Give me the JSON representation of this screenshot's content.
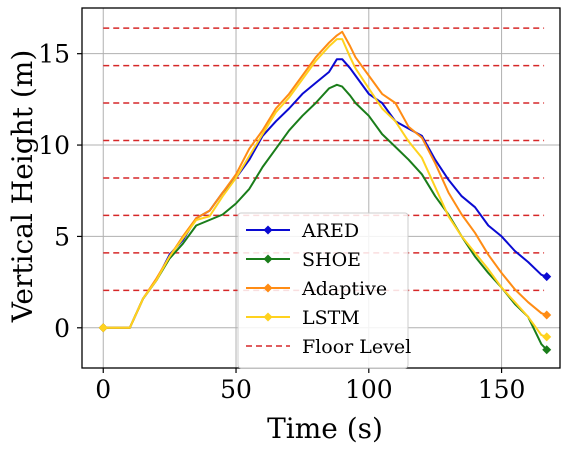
{
  "chart_data": {
    "type": "line",
    "xlabel": "Time (s)",
    "ylabel": "Vertical Height (m)",
    "xlim": [
      -8,
      172
    ],
    "ylim": [
      -2.2,
      17.5
    ],
    "xticks": [
      0,
      50,
      100,
      150
    ],
    "yticks": [
      0,
      5,
      10,
      15
    ],
    "grid": true,
    "legend_position": "lower-center",
    "reference_lines": {
      "name": "Floor Level",
      "color": "#d62728",
      "style": "dashed",
      "x_range": [
        0,
        166
      ],
      "y_values": [
        2.05,
        4.1,
        6.15,
        8.2,
        10.25,
        12.3,
        14.35,
        16.4
      ]
    },
    "series": [
      {
        "name": "ARED",
        "color": "#0a0ad2",
        "marker": "diamond",
        "x": [
          0,
          10,
          15,
          20,
          25,
          30,
          35,
          40,
          45,
          50,
          55,
          60,
          65,
          70,
          75,
          80,
          85,
          88,
          90,
          93,
          95,
          100,
          105,
          110,
          115,
          120,
          125,
          130,
          135,
          140,
          145,
          150,
          155,
          160,
          165,
          167
        ],
        "y": [
          0,
          0,
          1.6,
          2.6,
          4.0,
          4.8,
          6.0,
          6.4,
          7.4,
          8.2,
          9.2,
          10.5,
          11.3,
          12.0,
          12.8,
          13.4,
          14.0,
          14.7,
          14.7,
          14.2,
          13.8,
          12.8,
          12.3,
          11.3,
          10.9,
          10.5,
          9.2,
          8.1,
          7.2,
          6.6,
          5.6,
          5.0,
          4.2,
          3.6,
          2.9,
          2.8
        ]
      },
      {
        "name": "SHOE",
        "color": "#1a7d1a",
        "marker": "diamond",
        "x": [
          0,
          10,
          15,
          20,
          25,
          30,
          35,
          40,
          45,
          50,
          55,
          60,
          65,
          70,
          75,
          80,
          85,
          88,
          90,
          93,
          95,
          100,
          105,
          110,
          115,
          120,
          125,
          130,
          135,
          140,
          145,
          150,
          155,
          160,
          165,
          167
        ],
        "y": [
          0,
          0,
          1.6,
          2.6,
          3.8,
          4.6,
          5.6,
          5.9,
          6.2,
          6.8,
          7.6,
          8.8,
          9.8,
          10.8,
          11.6,
          12.3,
          13.1,
          13.3,
          13.2,
          12.7,
          12.3,
          11.6,
          10.6,
          9.9,
          9.2,
          8.4,
          7.2,
          6.2,
          5.0,
          3.9,
          3.0,
          2.2,
          1.3,
          0.6,
          -0.9,
          -1.2
        ]
      },
      {
        "name": "Adaptive",
        "color": "#ff8c14",
        "marker": "diamond",
        "x": [
          0,
          10,
          15,
          20,
          25,
          30,
          35,
          40,
          45,
          50,
          55,
          60,
          65,
          70,
          75,
          80,
          85,
          88,
          90,
          93,
          95,
          100,
          105,
          110,
          115,
          120,
          125,
          130,
          135,
          140,
          145,
          150,
          155,
          160,
          165,
          167
        ],
        "y": [
          0,
          0,
          1.6,
          2.7,
          3.9,
          5.0,
          6.0,
          6.4,
          7.4,
          8.4,
          9.8,
          10.8,
          12.0,
          12.8,
          13.8,
          14.8,
          15.6,
          16.0,
          16.2,
          15.4,
          14.8,
          13.8,
          12.8,
          12.3,
          11.0,
          10.4,
          9.0,
          7.4,
          6.2,
          5.2,
          4.0,
          3.0,
          2.1,
          1.4,
          0.8,
          0.7
        ]
      },
      {
        "name": "LSTM",
        "color": "#ffd21e",
        "marker": "diamond",
        "x": [
          0,
          10,
          15,
          20,
          25,
          30,
          35,
          40,
          45,
          50,
          55,
          60,
          65,
          70,
          75,
          80,
          85,
          88,
          90,
          93,
          95,
          100,
          105,
          110,
          115,
          120,
          125,
          130,
          135,
          140,
          145,
          150,
          155,
          160,
          165,
          167
        ],
        "y": [
          0,
          0,
          1.6,
          2.6,
          3.9,
          4.9,
          5.9,
          6.1,
          7.2,
          8.2,
          9.4,
          10.6,
          11.8,
          12.6,
          13.6,
          14.6,
          15.4,
          15.8,
          15.8,
          14.8,
          14.2,
          13.1,
          12.0,
          11.3,
          10.2,
          9.3,
          7.7,
          6.1,
          5.0,
          4.1,
          3.2,
          2.2,
          1.4,
          0.6,
          -0.4,
          -0.5
        ]
      }
    ]
  }
}
